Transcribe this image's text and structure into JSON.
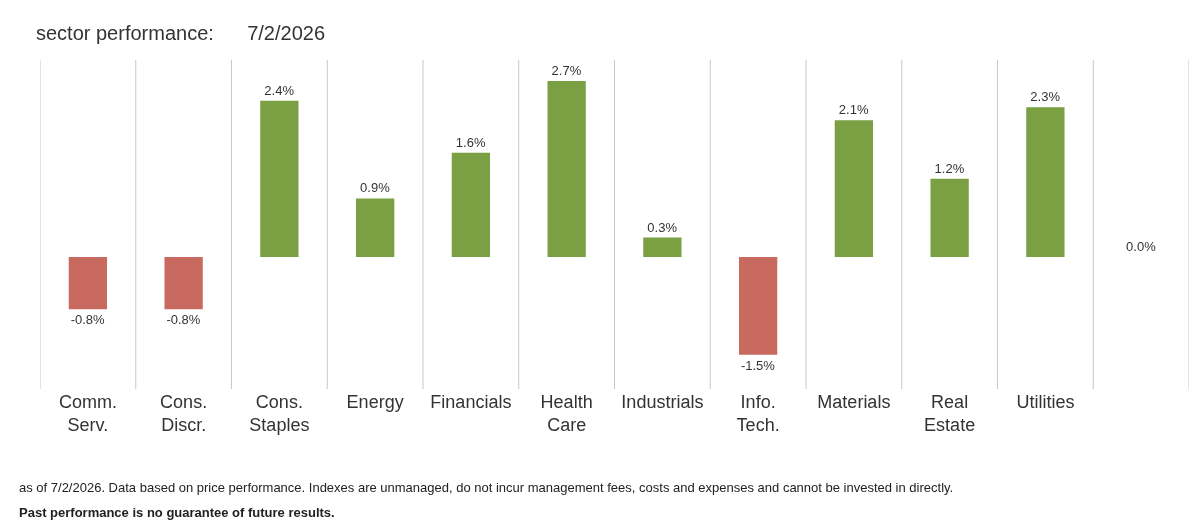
{
  "chart_data": {
    "type": "bar",
    "title": "sector performance:",
    "subtitle": "7/2/2026",
    "categories": [
      "Comm.\nServ.",
      "Cons.\nDiscr.",
      "Cons.\nStaples",
      "Energy",
      "Financials",
      "Health\nCare",
      "Industrials",
      "Info.\nTech.",
      "Materials",
      "Real\nEstate",
      "Utilities",
      null
    ],
    "values": [
      -0.8,
      -0.8,
      2.4,
      0.9,
      1.6,
      2.7,
      0.3,
      -1.5,
      2.1,
      1.2,
      2.3,
      0.0
    ],
    "colors": [
      "#c96a60",
      "#c96a60",
      "#7aa043",
      "#7aa043",
      "#7aa043",
      "#7aa043",
      "#7aa043",
      "#c96a60",
      "#7aa043",
      "#7aa043",
      "#7aa043",
      "#7aa043"
    ],
    "value_labels": [
      "-0.8%",
      "-0.8%",
      "2.4%",
      "0.9%",
      "1.6%",
      "2.7%",
      "0.3%",
      "-1.5%",
      "2.1%",
      "1.2%",
      "2.3%",
      "0.0%"
    ],
    "grid": "x",
    "legend": false,
    "annotations": [
      "as of 7/2/2026. Data based on price performance. Indexes are unmanaged, do not incur management fees, costs and expenses and cannot be invested in directly.",
      "Past performance is no guarantee of future results."
    ]
  }
}
